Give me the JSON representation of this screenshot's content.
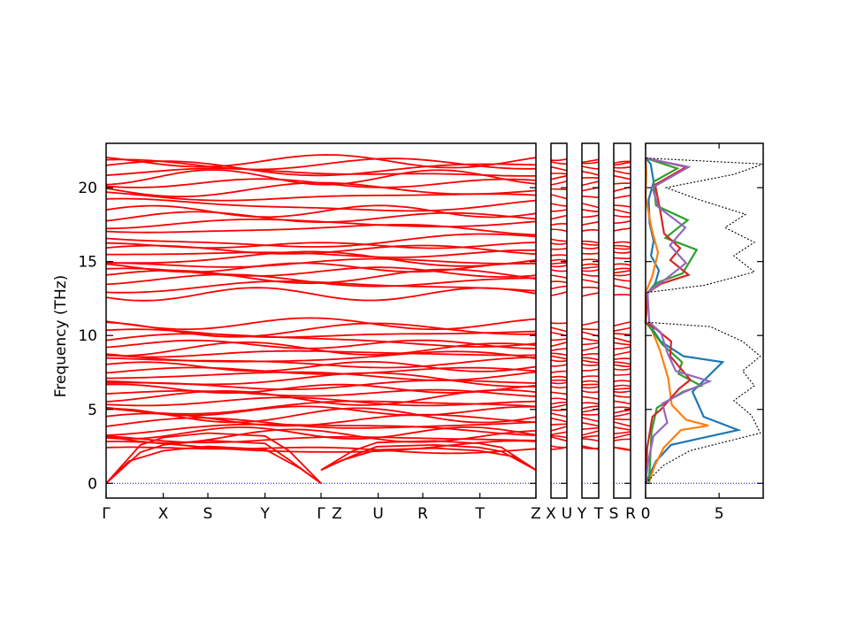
{
  "chart_data": [
    {
      "type": "line",
      "panel": "band-structure",
      "ylabel": "Frequency (THz)",
      "ylim": [
        -1,
        23
      ],
      "yticks": [
        0,
        5,
        10,
        15,
        20
      ],
      "segments": [
        {
          "labels": [
            "Γ",
            "X",
            "S",
            "Y",
            "Γ"
          ],
          "positions": [
            0,
            0.5,
            0.89,
            1.39,
            1.88
          ]
        },
        {
          "labels": [
            "Z",
            "U",
            "R",
            "T",
            "Z"
          ],
          "positions": [
            1.88,
            2.38,
            2.77,
            3.27,
            3.76
          ]
        },
        {
          "labels": [
            "X",
            "U"
          ]
        },
        {
          "labels": [
            "Y",
            "T"
          ]
        },
        {
          "labels": [
            "S",
            "R"
          ]
        }
      ],
      "band_color": "#ff0000",
      "acoustic_bands": [
        {
          "x": [
            0,
            0.3,
            0.5,
            0.89,
            1.39,
            1.6,
            1.88
          ],
          "y": [
            0,
            2.6,
            3.1,
            3.4,
            3.2,
            2.2,
            0
          ]
        },
        {
          "x": [
            0,
            0.3,
            0.5,
            0.89,
            1.39,
            1.6,
            1.88
          ],
          "y": [
            0,
            2.1,
            2.6,
            2.9,
            2.7,
            1.6,
            0
          ]
        },
        {
          "x": [
            0,
            0.2,
            0.5,
            0.89,
            1.39,
            1.7,
            1.88
          ],
          "y": [
            0,
            1.5,
            2.2,
            2.5,
            2.3,
            1.0,
            0
          ]
        }
      ],
      "optical_band_levels": [
        2.3,
        2.4,
        3.0,
        3.2,
        3.4,
        3.7,
        4.0,
        4.3,
        4.6,
        4.9,
        5.2,
        5.5,
        5.8,
        6.1,
        6.4,
        6.7,
        7.0,
        7.3,
        7.6,
        7.9,
        8.2,
        8.5,
        8.8,
        9.1,
        9.4,
        9.7,
        10.1,
        10.4,
        10.8,
        12.8,
        13.3,
        13.7,
        14.0,
        14.3,
        14.6,
        14.9,
        15.2,
        15.5,
        15.8,
        16.1,
        16.4,
        17.2,
        17.6,
        18.0,
        18.4,
        18.8,
        19.4,
        19.9,
        20.3,
        20.7,
        21.0,
        21.3,
        21.6,
        21.8
      ],
      "zero_line_color": "#0000cc"
    },
    {
      "type": "line",
      "panel": "dos",
      "xlim": [
        0,
        8
      ],
      "xticks": [
        0,
        5
      ],
      "ylim": [
        -1,
        23
      ],
      "series": [
        {
          "color": "#1f77b4",
          "values": [
            [
              0,
              0
            ],
            [
              0.5,
              1.5
            ],
            [
              1.5,
              2.6
            ],
            [
              3.5,
              3.0
            ],
            [
              6.5,
              3.6
            ],
            [
              5.5,
              4.0
            ],
            [
              4,
              4.5
            ],
            [
              3,
              6.2
            ],
            [
              5,
              8.2
            ],
            [
              2.5,
              8.6
            ],
            [
              1.2,
              9.6
            ],
            [
              0.6,
              10.6
            ],
            [
              0,
              10.9
            ],
            [
              0,
              12.9
            ],
            [
              0.4,
              13.5
            ],
            [
              0.8,
              14.4
            ],
            [
              0.5,
              15.4
            ],
            [
              0.8,
              16.4
            ],
            [
              0.4,
              17.6
            ],
            [
              0.1,
              19.2
            ],
            [
              0.3,
              20.4
            ],
            [
              0.2,
              21.6
            ],
            [
              0,
              22
            ]
          ]
        },
        {
          "color": "#ff7f0e",
          "values": [
            [
              0,
              0
            ],
            [
              0.4,
              1.2
            ],
            [
              1.2,
              2.4
            ],
            [
              2.6,
              3.6
            ],
            [
              4.5,
              3.9
            ],
            [
              2.8,
              4.3
            ],
            [
              1.6,
              5.3
            ],
            [
              1.3,
              7.1
            ],
            [
              0.9,
              9.0
            ],
            [
              0.5,
              10.6
            ],
            [
              0,
              10.9
            ],
            [
              0,
              12.9
            ],
            [
              0.3,
              14.0
            ],
            [
              0.6,
              15.6
            ],
            [
              0.3,
              17.2
            ],
            [
              0.1,
              19.4
            ],
            [
              0.3,
              21.0
            ],
            [
              0,
              22
            ]
          ]
        },
        {
          "color": "#2ca02c",
          "values": [
            [
              0,
              0
            ],
            [
              0.3,
              2.0
            ],
            [
              0.6,
              3.5
            ],
            [
              1.0,
              5.1
            ],
            [
              2.6,
              6.2
            ],
            [
              3.6,
              6.6
            ],
            [
              2.0,
              7.4
            ],
            [
              2.4,
              8.2
            ],
            [
              1.3,
              9.4
            ],
            [
              0.5,
              10.6
            ],
            [
              0,
              10.9
            ],
            [
              0,
              12.9
            ],
            [
              0.6,
              13.6
            ],
            [
              2.4,
              14.2
            ],
            [
              3.6,
              15.8
            ],
            [
              1.6,
              16.6
            ],
            [
              3.0,
              17.8
            ],
            [
              0.6,
              18.8
            ],
            [
              0.3,
              20.4
            ],
            [
              2.0,
              21.3
            ],
            [
              0,
              22
            ]
          ]
        },
        {
          "color": "#d62728",
          "values": [
            [
              0,
              0
            ],
            [
              0.3,
              2.4
            ],
            [
              0.7,
              4.5
            ],
            [
              1.1,
              5.0
            ],
            [
              2.1,
              6.4
            ],
            [
              2.8,
              7.0
            ],
            [
              1.6,
              8.6
            ],
            [
              1.9,
              9.6
            ],
            [
              1.0,
              10.4
            ],
            [
              0,
              10.9
            ],
            [
              0,
              12.9
            ],
            [
              0.8,
              13.5
            ],
            [
              2.8,
              14.1
            ],
            [
              1.8,
              15.1
            ],
            [
              2.6,
              15.9
            ],
            [
              1.4,
              16.9
            ],
            [
              0.9,
              18.4
            ],
            [
              0.4,
              20.2
            ],
            [
              2.6,
              21.4
            ],
            [
              0,
              22
            ]
          ]
        },
        {
          "color": "#9467bd",
          "values": [
            [
              0,
              0
            ],
            [
              0.4,
              1.4
            ],
            [
              0.6,
              3.2
            ],
            [
              1.3,
              4.1
            ],
            [
              0.9,
              5.4
            ],
            [
              2.6,
              6.2
            ],
            [
              4.5,
              6.9
            ],
            [
              2.3,
              7.6
            ],
            [
              1.6,
              8.8
            ],
            [
              0.9,
              10.2
            ],
            [
              0,
              10.9
            ],
            [
              0,
              12.9
            ],
            [
              1.6,
              13.9
            ],
            [
              3.0,
              14.9
            ],
            [
              1.8,
              16.1
            ],
            [
              2.6,
              17.3
            ],
            [
              0.6,
              18.7
            ],
            [
              0.3,
              20.0
            ],
            [
              3.0,
              21.4
            ],
            [
              0,
              22
            ]
          ]
        },
        {
          "color": "#000000",
          "dashed": true,
          "values": [
            [
              0,
              0
            ],
            [
              1.2,
              1.2
            ],
            [
              3.0,
              2.2
            ],
            [
              7.8,
              3.4
            ],
            [
              7.2,
              4.6
            ],
            [
              6.0,
              5.6
            ],
            [
              7.4,
              6.6
            ],
            [
              6.6,
              7.6
            ],
            [
              7.8,
              8.6
            ],
            [
              6.6,
              9.6
            ],
            [
              4.4,
              10.6
            ],
            [
              0,
              10.9
            ],
            [
              0,
              12.9
            ],
            [
              4.0,
              13.4
            ],
            [
              7.4,
              14.3
            ],
            [
              6.0,
              15.4
            ],
            [
              7.4,
              16.3
            ],
            [
              5.4,
              17.3
            ],
            [
              6.8,
              18.2
            ],
            [
              3.6,
              19.2
            ],
            [
              1.4,
              20.0
            ],
            [
              6.0,
              20.9
            ],
            [
              8.0,
              21.6
            ],
            [
              0,
              22
            ]
          ]
        }
      ]
    }
  ]
}
